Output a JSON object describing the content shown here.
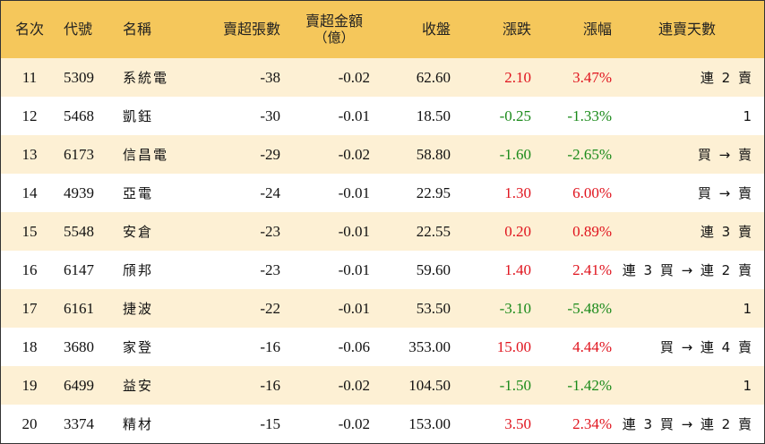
{
  "headers": {
    "rank": "名次",
    "code": "代號",
    "name": "名稱",
    "sell_lots": "賣超張數",
    "sell_amount": "賣超金額",
    "sell_amount_unit": "（億）",
    "close": "收盤",
    "change": "漲跌",
    "change_pct": "漲幅",
    "streak": "連賣天數"
  },
  "colors": {
    "header_bg": "#f5c75b",
    "stripe_bg": "#fdf0d4",
    "up": "#e0141e",
    "down": "#1a8a1a"
  },
  "rows": [
    {
      "rank": "11",
      "code": "5309",
      "name": "系統電",
      "sell_lots": "-38",
      "sell_amount": "-0.02",
      "close": "62.60",
      "change": "2.10",
      "change_pct": "3.47%",
      "direction": "up",
      "streak": "連 2 賣"
    },
    {
      "rank": "12",
      "code": "5468",
      "name": "凱鈺",
      "sell_lots": "-30",
      "sell_amount": "-0.01",
      "close": "18.50",
      "change": "-0.25",
      "change_pct": "-1.33%",
      "direction": "down",
      "streak": "1"
    },
    {
      "rank": "13",
      "code": "6173",
      "name": "信昌電",
      "sell_lots": "-29",
      "sell_amount": "-0.02",
      "close": "58.80",
      "change": "-1.60",
      "change_pct": "-2.65%",
      "direction": "down",
      "streak": "買 → 賣"
    },
    {
      "rank": "14",
      "code": "4939",
      "name": "亞電",
      "sell_lots": "-24",
      "sell_amount": "-0.01",
      "close": "22.95",
      "change": "1.30",
      "change_pct": "6.00%",
      "direction": "up",
      "streak": "買 → 賣"
    },
    {
      "rank": "15",
      "code": "5548",
      "name": "安倉",
      "sell_lots": "-23",
      "sell_amount": "-0.01",
      "close": "22.55",
      "change": "0.20",
      "change_pct": "0.89%",
      "direction": "up",
      "streak": "連 3 賣"
    },
    {
      "rank": "16",
      "code": "6147",
      "name": "頎邦",
      "sell_lots": "-23",
      "sell_amount": "-0.01",
      "close": "59.60",
      "change": "1.40",
      "change_pct": "2.41%",
      "direction": "up",
      "streak": "連 3 買 → 連 2 賣"
    },
    {
      "rank": "17",
      "code": "6161",
      "name": "捷波",
      "sell_lots": "-22",
      "sell_amount": "-0.01",
      "close": "53.50",
      "change": "-3.10",
      "change_pct": "-5.48%",
      "direction": "down",
      "streak": "1"
    },
    {
      "rank": "18",
      "code": "3680",
      "name": "家登",
      "sell_lots": "-16",
      "sell_amount": "-0.06",
      "close": "353.00",
      "change": "15.00",
      "change_pct": "4.44%",
      "direction": "up",
      "streak": "買 → 連 4 賣"
    },
    {
      "rank": "19",
      "code": "6499",
      "name": "益安",
      "sell_lots": "-16",
      "sell_amount": "-0.02",
      "close": "104.50",
      "change": "-1.50",
      "change_pct": "-1.42%",
      "direction": "down",
      "streak": "1"
    },
    {
      "rank": "20",
      "code": "3374",
      "name": "精材",
      "sell_lots": "-15",
      "sell_amount": "-0.02",
      "close": "153.00",
      "change": "3.50",
      "change_pct": "2.34%",
      "direction": "up",
      "streak": "連 3 買 → 連 2 賣"
    }
  ]
}
